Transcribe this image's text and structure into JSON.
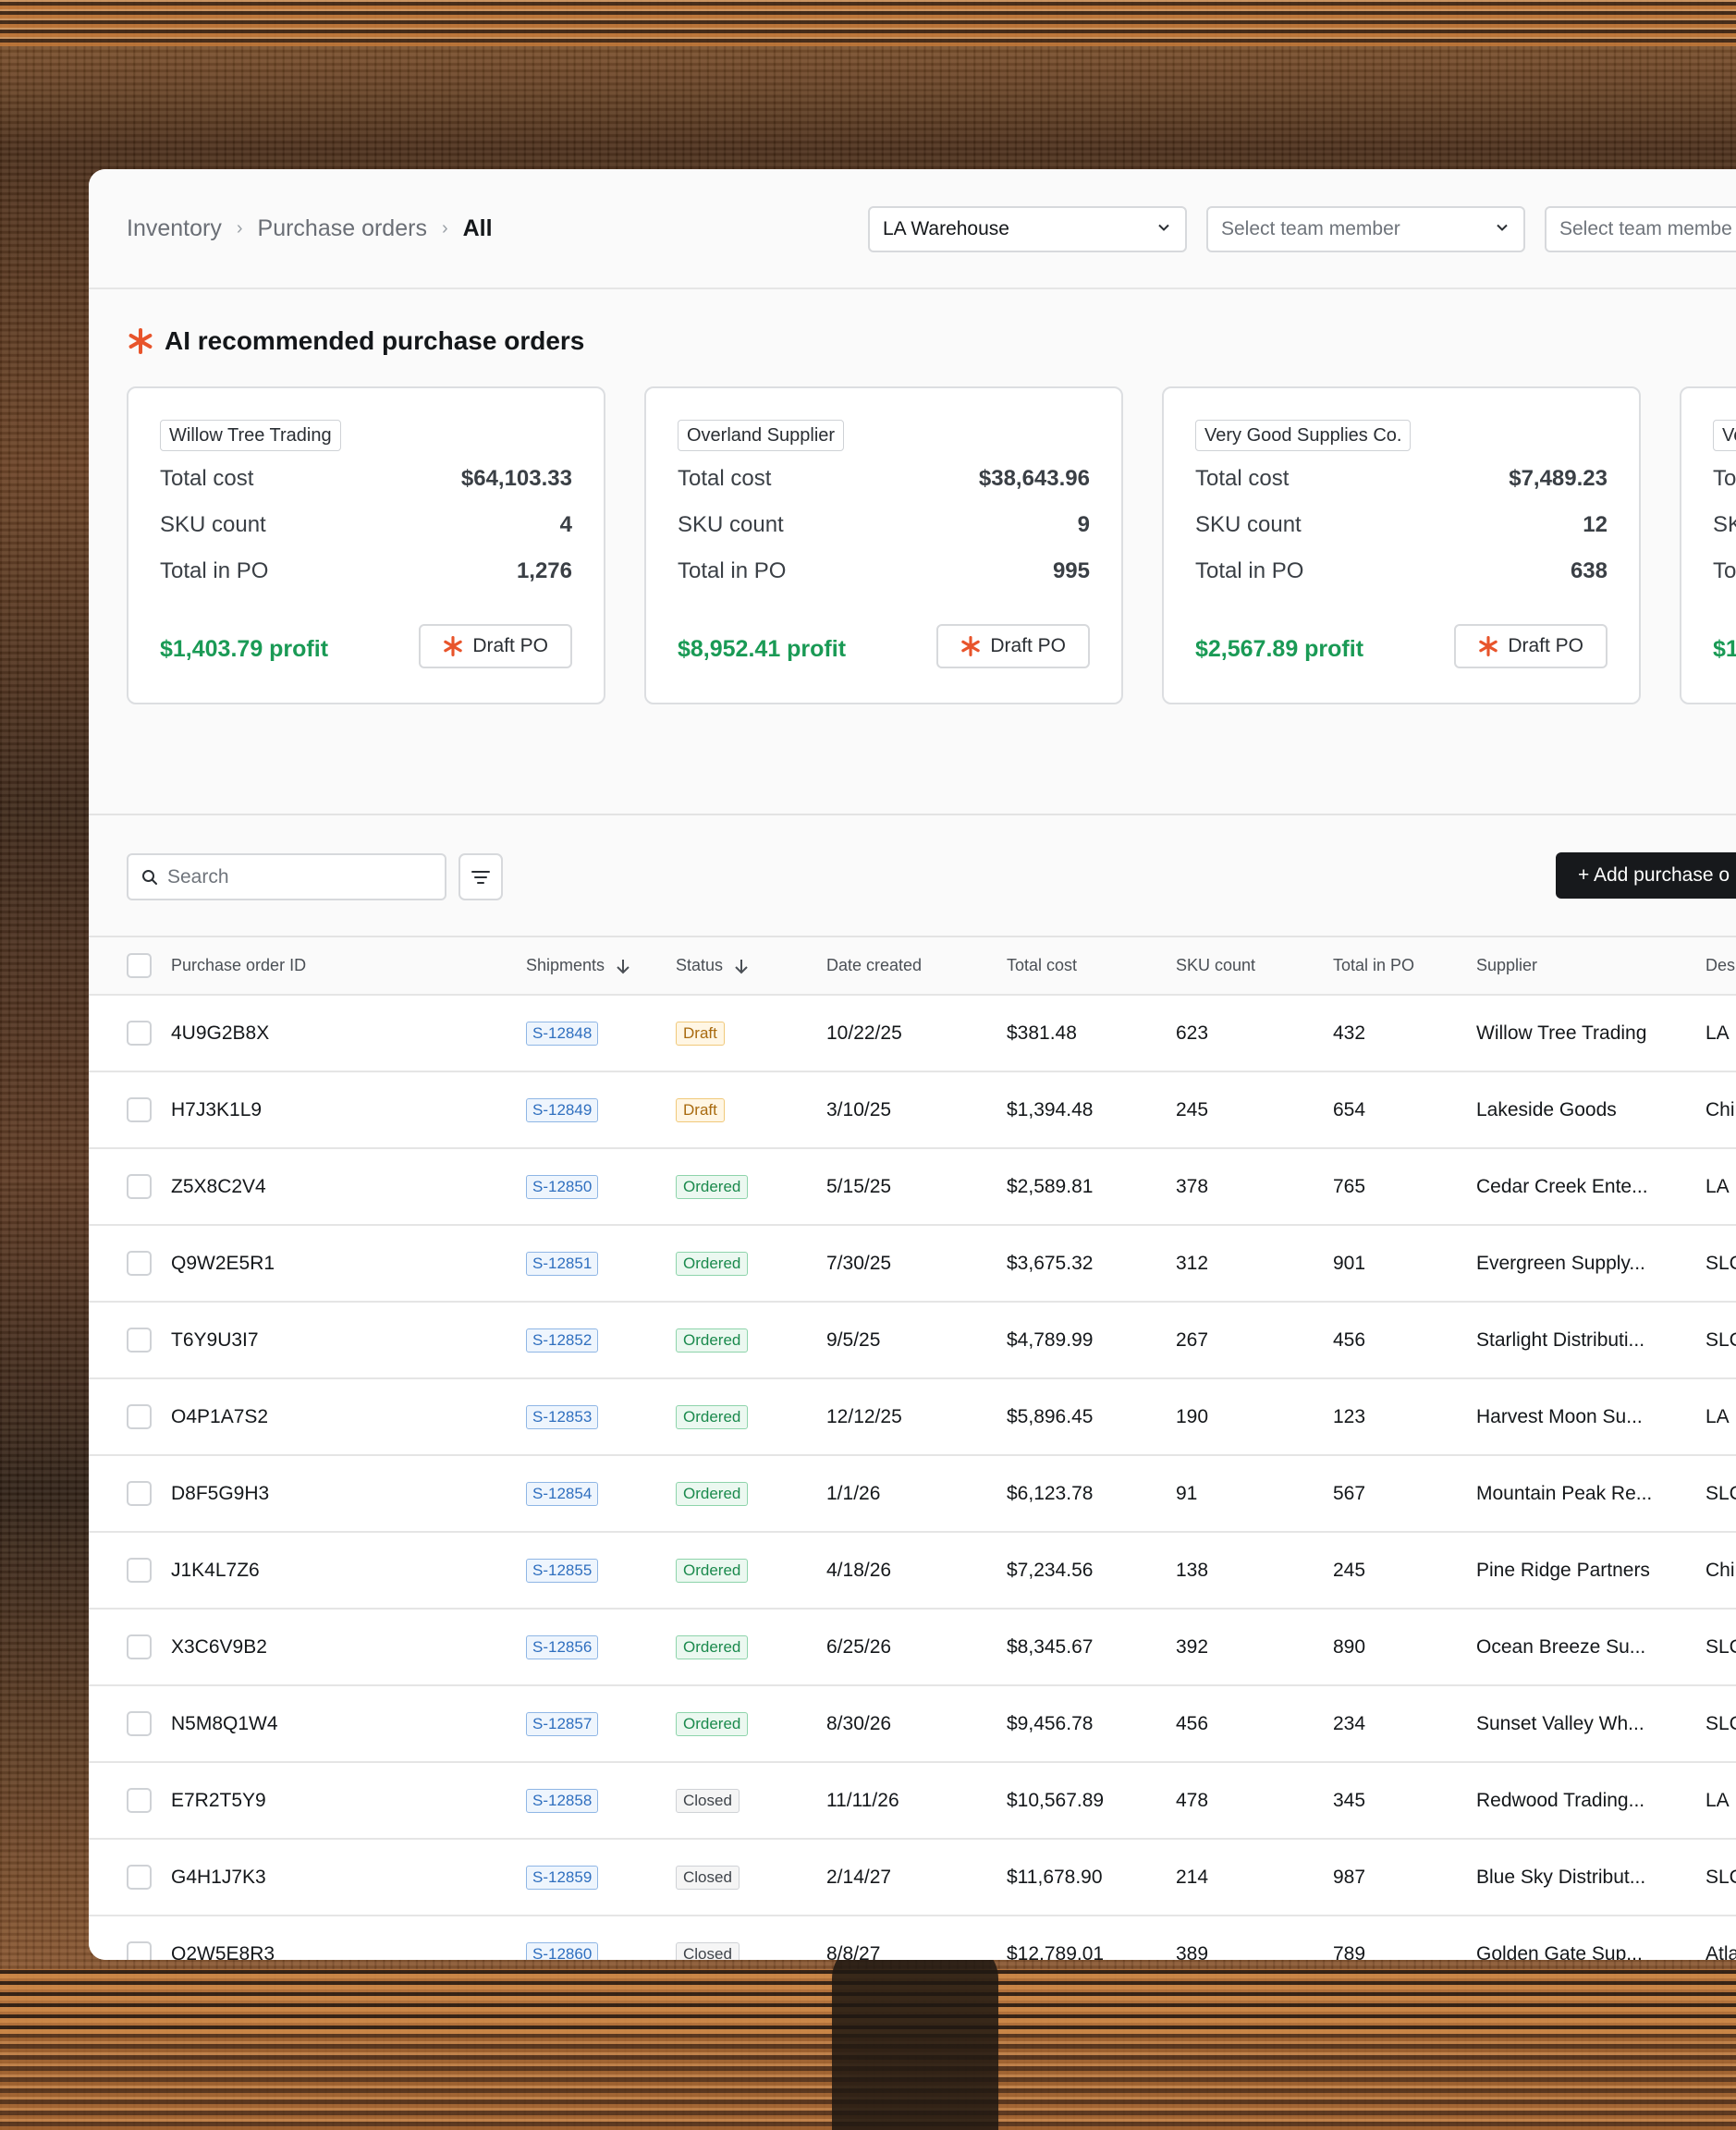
{
  "breadcrumb": {
    "root": "Inventory",
    "section": "Purchase orders",
    "current": "All"
  },
  "filters": {
    "warehouse": "LA Warehouse",
    "team_member_1": "Select team member",
    "team_member_2": "Select team membe"
  },
  "ai": {
    "title": "AI recommended purchase orders",
    "labels": {
      "total_cost": "Total cost",
      "sku_count": "SKU count",
      "total_in_po": "Total in PO",
      "draft": "Draft PO"
    },
    "cards": [
      {
        "supplier": "Willow Tree Trading",
        "total_cost": "$64,103.33",
        "sku_count": "4",
        "total_in_po": "1,276",
        "profit": "$1,403.79 profit"
      },
      {
        "supplier": "Overland Supplier",
        "total_cost": "$38,643.96",
        "sku_count": "9",
        "total_in_po": "995",
        "profit": "$8,952.41 profit"
      },
      {
        "supplier": "Very Good Supplies Co.",
        "total_cost": "$7,489.23",
        "sku_count": "12",
        "total_in_po": "638",
        "profit": "$2,567.89 profit"
      },
      {
        "supplier": "Ve",
        "total_cost": "",
        "sku_count": "",
        "total_in_po": "",
        "profit": "$1",
        "label_total_cost": "To",
        "label_sku": "SK",
        "label_po": "To"
      }
    ]
  },
  "toolbar": {
    "search_placeholder": "Search",
    "add_label": "+ Add purchase o"
  },
  "table": {
    "headers": {
      "id": "Purchase order ID",
      "shipments": "Shipments",
      "status": "Status",
      "date": "Date created",
      "cost": "Total cost",
      "sku": "SKU count",
      "total_po": "Total  in PO",
      "supplier": "Supplier",
      "dest": "Des"
    },
    "rows": [
      {
        "id": "4U9G2B8X",
        "shipment": "S-12848",
        "status": "Draft",
        "date": "10/22/25",
        "cost": "$381.48",
        "sku": "623",
        "total_po": "432",
        "supplier": "Willow Tree Trading",
        "dest": "LA"
      },
      {
        "id": "H7J3K1L9",
        "shipment": "S-12849",
        "status": "Draft",
        "date": "3/10/25",
        "cost": "$1,394.48",
        "sku": "245",
        "total_po": "654",
        "supplier": "Lakeside Goods",
        "dest": "Chi"
      },
      {
        "id": "Z5X8C2V4",
        "shipment": "S-12850",
        "status": "Ordered",
        "date": "5/15/25",
        "cost": "$2,589.81",
        "sku": "378",
        "total_po": "765",
        "supplier": "Cedar Creek Ente...",
        "dest": "LA"
      },
      {
        "id": "Q9W2E5R1",
        "shipment": "S-12851",
        "status": "Ordered",
        "date": "7/30/25",
        "cost": "$3,675.32",
        "sku": "312",
        "total_po": "901",
        "supplier": "Evergreen Supply...",
        "dest": "SLC"
      },
      {
        "id": "T6Y9U3I7",
        "shipment": "S-12852",
        "status": "Ordered",
        "date": "9/5/25",
        "cost": "$4,789.99",
        "sku": "267",
        "total_po": "456",
        "supplier": "Starlight Distributi...",
        "dest": "SLC"
      },
      {
        "id": "O4P1A7S2",
        "shipment": "S-12853",
        "status": "Ordered",
        "date": "12/12/25",
        "cost": "$5,896.45",
        "sku": "190",
        "total_po": "123",
        "supplier": "Harvest Moon Su...",
        "dest": "LA"
      },
      {
        "id": "D8F5G9H3",
        "shipment": "S-12854",
        "status": "Ordered",
        "date": "1/1/26",
        "cost": "$6,123.78",
        "sku": "91",
        "total_po": "567",
        "supplier": "Mountain Peak Re...",
        "dest": "SLC"
      },
      {
        "id": "J1K4L7Z6",
        "shipment": "S-12855",
        "status": "Ordered",
        "date": "4/18/26",
        "cost": "$7,234.56",
        "sku": "138",
        "total_po": "245",
        "supplier": "Pine Ridge Partners",
        "dest": "Chi"
      },
      {
        "id": "X3C6V9B2",
        "shipment": "S-12856",
        "status": "Ordered",
        "date": "6/25/26",
        "cost": "$8,345.67",
        "sku": "392",
        "total_po": "890",
        "supplier": "Ocean Breeze Su...",
        "dest": "SLC"
      },
      {
        "id": "N5M8Q1W4",
        "shipment": "S-12857",
        "status": "Ordered",
        "date": "8/30/26",
        "cost": "$9,456.78",
        "sku": "456",
        "total_po": "234",
        "supplier": "Sunset Valley Wh...",
        "dest": "SLC"
      },
      {
        "id": "E7R2T5Y9",
        "shipment": "S-12858",
        "status": "Closed",
        "date": "11/11/26",
        "cost": "$10,567.89",
        "sku": "478",
        "total_po": "345",
        "supplier": "Redwood Trading...",
        "dest": "LA"
      },
      {
        "id": "G4H1J7K3",
        "shipment": "S-12859",
        "status": "Closed",
        "date": "2/14/27",
        "cost": "$11,678.90",
        "sku": "214",
        "total_po": "987",
        "supplier": "Blue Sky Distribut...",
        "dest": "SLC"
      },
      {
        "id": "Q2W5E8R3",
        "shipment": "S-12860",
        "status": "Closed",
        "date": "8/8/27",
        "cost": "$12,789.01",
        "sku": "389",
        "total_po": "789",
        "supplier": "Golden Gate Sup...",
        "dest": "Atla"
      }
    ]
  },
  "colors": {
    "accent_orange": "#e8542b",
    "profit_green": "#1a9a55",
    "primary_button": "#17191c"
  }
}
